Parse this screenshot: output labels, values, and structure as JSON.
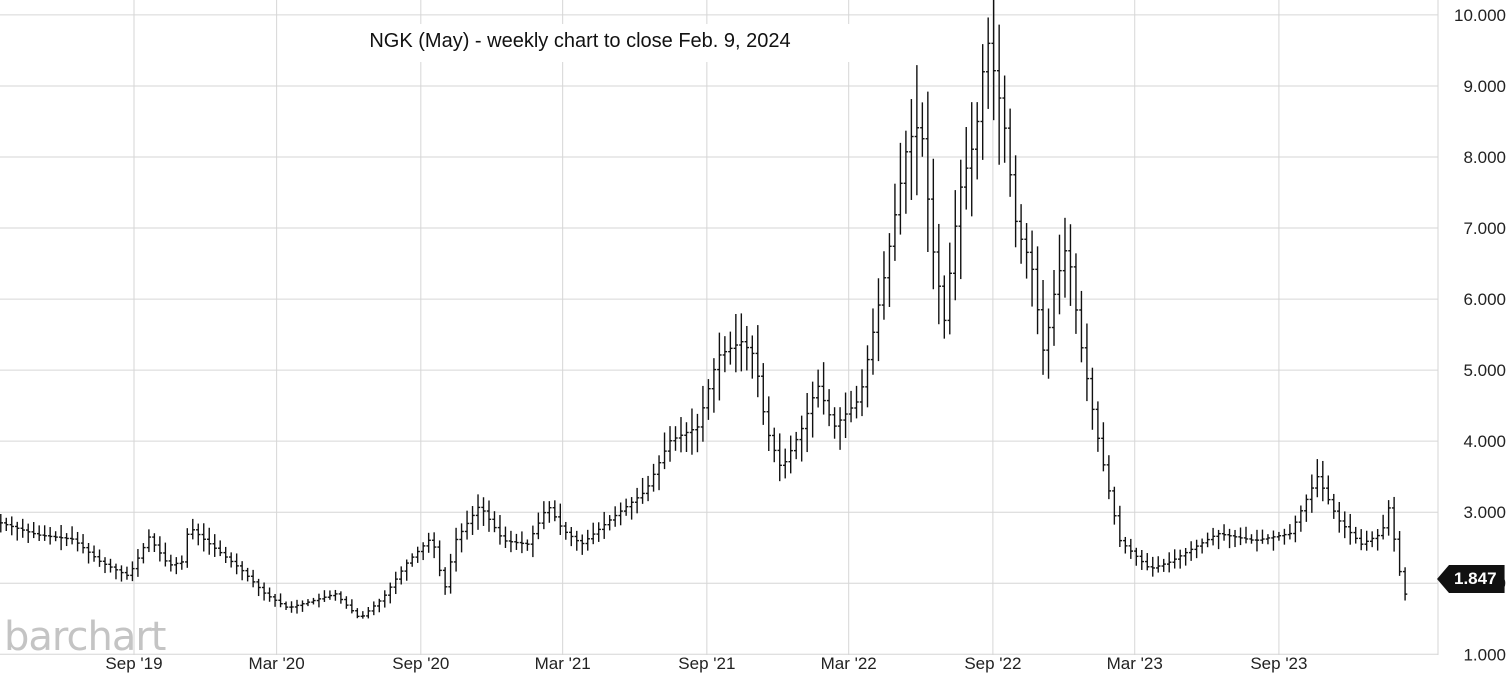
{
  "chart_data": {
    "type": "ohlc-bar",
    "title": "NGK (May) - weekly chart to close Feb. 9, 2024",
    "last_value": "1.847",
    "watermark": "barchart",
    "y_ticks": [
      "1.000",
      "2.000",
      "3.000",
      "4.000",
      "5.000",
      "6.000",
      "7.000",
      "8.000",
      "9.000",
      "10.000"
    ],
    "y_tick_values": [
      1,
      2,
      3,
      4,
      5,
      6,
      7,
      8,
      9,
      10
    ],
    "ylim": [
      0.99,
      10.21
    ],
    "x_ticks": [
      "Sep '19",
      "Mar '20",
      "Sep '20",
      "Mar '21",
      "Sep '21",
      "Mar '22",
      "Sep '22",
      "Mar '23",
      "Sep '23"
    ],
    "x_tick_dates": [
      "2019-09-01",
      "2020-03-01",
      "2020-09-01",
      "2021-03-01",
      "2021-09-01",
      "2022-03-01",
      "2022-09-01",
      "2023-03-01",
      "2023-09-01"
    ],
    "xlim": [
      "2019-03-14",
      "2024-03-22"
    ],
    "grid": true,
    "series": [
      {
        "price_path": [
          [
            "2019-03-15",
            2.85
          ],
          [
            "2019-05-01",
            2.68
          ],
          [
            "2019-06-15",
            2.62
          ],
          [
            "2019-07-20",
            2.3
          ],
          [
            "2019-08-25",
            2.1
          ],
          [
            "2019-09-20",
            2.65
          ],
          [
            "2019-10-15",
            2.25
          ],
          [
            "2019-11-01",
            2.3
          ],
          [
            "2019-11-10",
            2.8
          ],
          [
            "2019-12-01",
            2.6
          ],
          [
            "2020-01-15",
            2.2
          ],
          [
            "2020-02-15",
            1.85
          ],
          [
            "2020-03-15",
            1.65
          ],
          [
            "2020-04-15",
            1.75
          ],
          [
            "2020-05-15",
            1.85
          ],
          [
            "2020-06-15",
            1.5
          ],
          [
            "2020-07-15",
            1.8
          ],
          [
            "2020-08-15",
            2.3
          ],
          [
            "2020-09-15",
            2.65
          ],
          [
            "2020-10-01",
            1.9
          ],
          [
            "2020-10-15",
            2.6
          ],
          [
            "2020-11-15",
            3.1
          ],
          [
            "2020-12-15",
            2.6
          ],
          [
            "2021-01-15",
            2.55
          ],
          [
            "2021-02-10",
            3.1
          ],
          [
            "2021-03-01",
            2.75
          ],
          [
            "2021-03-25",
            2.55
          ],
          [
            "2021-05-01",
            2.9
          ],
          [
            "2021-06-15",
            3.3
          ],
          [
            "2021-07-15",
            4.0
          ],
          [
            "2021-08-20",
            4.2
          ],
          [
            "2021-09-15",
            5.2
          ],
          [
            "2021-10-15",
            5.4
          ],
          [
            "2021-11-01",
            5.2
          ],
          [
            "2021-11-15",
            4.2
          ],
          [
            "2021-12-05",
            3.6
          ],
          [
            "2022-01-01",
            4.2
          ],
          [
            "2022-01-20",
            4.8
          ],
          [
            "2022-02-10",
            4.2
          ],
          [
            "2022-03-15",
            4.6
          ],
          [
            "2022-04-15",
            6.3
          ],
          [
            "2022-05-15",
            8.2
          ],
          [
            "2022-06-01",
            8.5
          ],
          [
            "2022-06-15",
            6.8
          ],
          [
            "2022-07-01",
            5.7
          ],
          [
            "2022-07-20",
            7.5
          ],
          [
            "2022-08-10",
            8.3
          ],
          [
            "2022-08-20",
            9.3
          ],
          [
            "2022-08-26",
            9.6
          ],
          [
            "2022-09-15",
            8.5
          ],
          [
            "2022-10-01",
            7.0
          ],
          [
            "2022-10-20",
            6.5
          ],
          [
            "2022-11-05",
            5.2
          ],
          [
            "2022-11-20",
            6.2
          ],
          [
            "2022-12-05",
            6.8
          ],
          [
            "2022-12-20",
            5.5
          ],
          [
            "2023-01-10",
            4.2
          ],
          [
            "2023-01-25",
            3.4
          ],
          [
            "2023-02-10",
            2.6
          ],
          [
            "2023-03-01",
            2.4
          ],
          [
            "2023-03-20",
            2.2
          ],
          [
            "2023-04-15",
            2.3
          ],
          [
            "2023-06-15",
            2.7
          ],
          [
            "2023-08-01",
            2.6
          ],
          [
            "2023-09-15",
            2.7
          ],
          [
            "2023-10-20",
            3.5
          ],
          [
            "2023-11-15",
            2.9
          ],
          [
            "2023-12-15",
            2.55
          ],
          [
            "2024-01-10",
            2.7
          ],
          [
            "2024-01-20",
            3.1
          ],
          [
            "2024-01-30",
            2.3
          ],
          [
            "2024-02-09",
            1.847
          ]
        ]
      }
    ]
  }
}
